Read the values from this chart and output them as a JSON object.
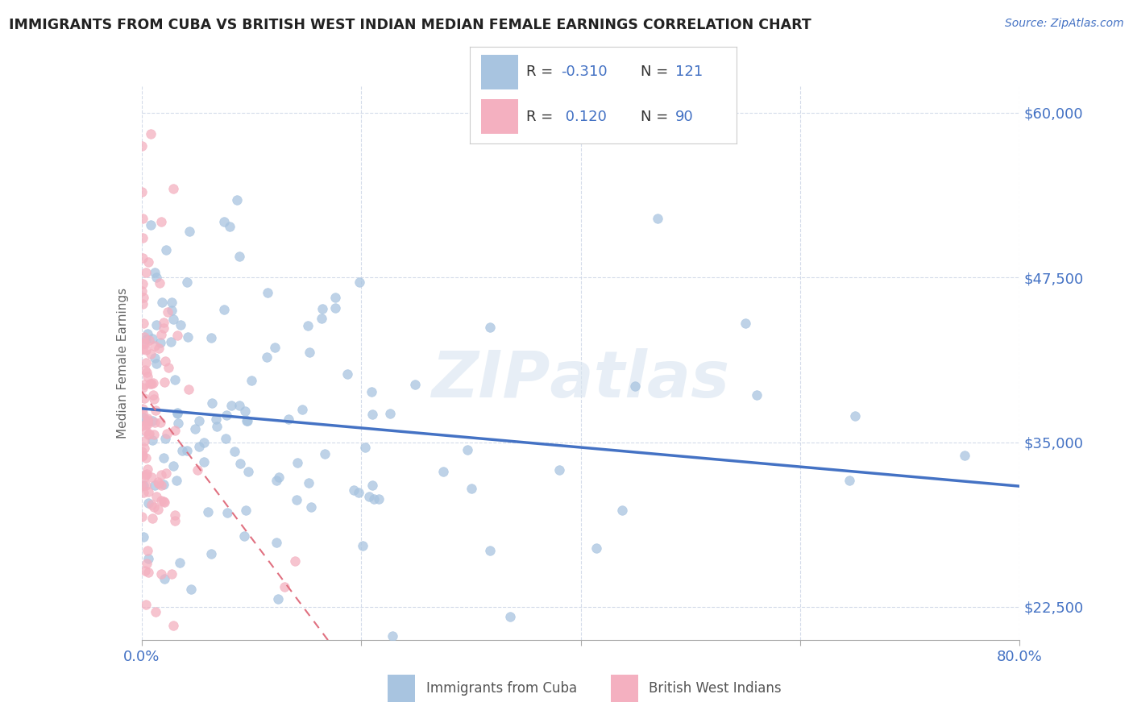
{
  "title": "IMMIGRANTS FROM CUBA VS BRITISH WEST INDIAN MEDIAN FEMALE EARNINGS CORRELATION CHART",
  "source": "Source: ZipAtlas.com",
  "ylabel": "Median Female Earnings",
  "xlim": [
    0.0,
    0.8
  ],
  "ylim": [
    20000,
    62000
  ],
  "yticks": [
    22500,
    35000,
    47500,
    60000
  ],
  "ytick_labels": [
    "$22,500",
    "$35,000",
    "$47,500",
    "$60,000"
  ],
  "xticks": [
    0.0,
    0.2,
    0.4,
    0.6,
    0.8
  ],
  "xtick_labels": [
    "0.0%",
    "",
    "",
    "",
    "80.0%"
  ],
  "cuba_color": "#a8c4e0",
  "bwi_color": "#f4b0c0",
  "cuba_line_color": "#4472c4",
  "bwi_line_color": "#e07080",
  "background_color": "#ffffff",
  "grid_color": "#d0d8e8",
  "axis_color": "#4472c4",
  "cuba_R": -0.31,
  "cuba_N": 121,
  "bwi_R": 0.12,
  "bwi_N": 90,
  "watermark_color": "#d8e4f0",
  "title_color": "#222222",
  "source_color": "#4472c4"
}
